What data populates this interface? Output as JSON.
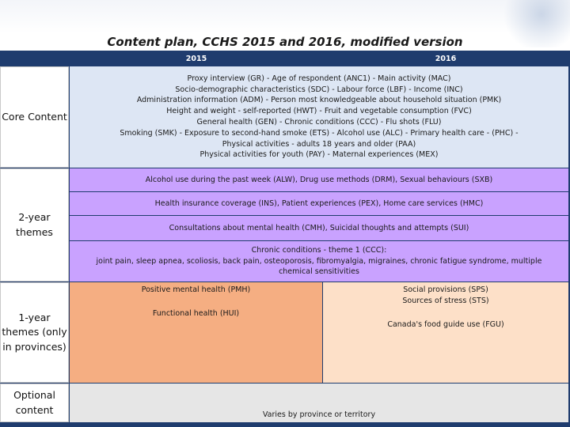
{
  "title": "Content plan, CCHS 2015 and 2016, modified version",
  "columns": [
    "2015",
    "2016"
  ],
  "rows": {
    "core": {
      "label": "Core Content",
      "lines": [
        "Proxy interview (GR) - Age of respondent (ANC1) - Main activity (MAC)",
        "Socio-demographic characteristics (SDC) - Labour force (LBF) - Income (INC)",
        "Administration information (ADM) - Person most knowledgeable about household situation (PMK)",
        "Height and weight - self-reported (HWT) - Fruit and vegetable consumption (FVC)",
        "General health (GEN) - Chronic conditions (CCC) -  Flu shots (FLU)",
        "Smoking (SMK) - Exposure to second-hand smoke (ETS) - Alcohol use (ALC) - Primary health care -  (PHC)  -",
        "Physical activities - adults 18 years and older (PAA)",
        "Physical activities for youth (PAY)  - Maternal experiences (MEX)"
      ]
    },
    "two_year": {
      "label_line1": "2-year",
      "label_line2": "themes",
      "items": [
        "Alcohol use during the past week (ALW), Drug use methods (DRM), Sexual behaviours (SXB)",
        "Health insurance coverage (INS), Patient experiences (PEX), Home care services (HMC)",
        "Consultations about mental health (CMH), Suicidal thoughts and attempts (SUI)"
      ],
      "chronic_title": "Chronic conditions - theme 1 (CCC):",
      "chronic_body": "joint pain, sleep apnea, scoliosis, back pain, osteoporosis, fibromyalgia, migraines, chronic fatigue syndrome, multiple chemical sensitivities"
    },
    "one_year": {
      "label_line1": "1-year",
      "label_line2": "themes (only",
      "label_line3": "in provinces)",
      "y2015_a": "Positive mental health (PMH)",
      "y2015_b": "Functional health (HUI)",
      "y2016_a": "Social provisions (SPS)",
      "y2016_b": "Sources of stress (STS)",
      "y2016_c": "Canada's food guide use (FGU)"
    },
    "optional": {
      "label_line1": "Optional",
      "label_line2": "content",
      "text": "Varies by province or territory"
    }
  }
}
